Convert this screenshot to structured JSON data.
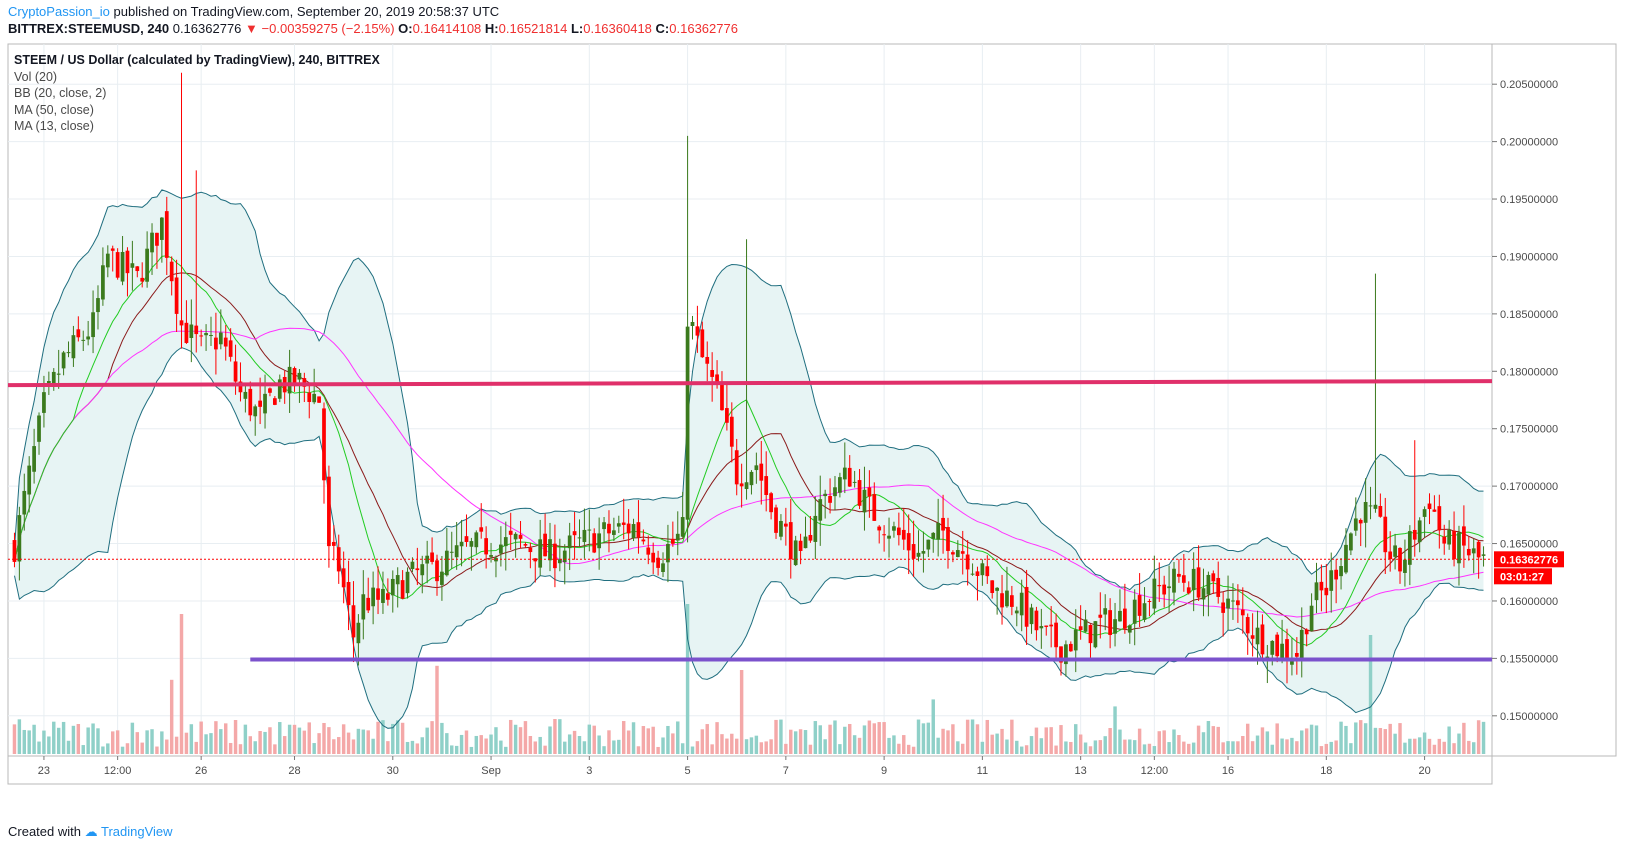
{
  "header": {
    "author": "CryptoPassion_io",
    "published": "published on TradingView.com, September 20, 2019 20:58:37 UTC",
    "symbol": "BITTREX:STEEMUSD, 240",
    "last": "0.16362776",
    "arrow": "▼",
    "change": "−0.00359275 (−2.15%)",
    "o_label": "O:",
    "o": "0.16414108",
    "h_label": "H:",
    "h": "0.16521814",
    "l_label": "L:",
    "l": "0.16360418",
    "c_label": "C:",
    "c": "0.16362776"
  },
  "legend": {
    "title": "STEEM / US Dollar (calculated by TradingView), 240, BITTREX",
    "lines": [
      "Vol (20)",
      "BB (20, close, 2)",
      "MA (50, close)",
      "MA (13, close)"
    ]
  },
  "footer": {
    "created": "Created with",
    "brand": "TradingView"
  },
  "colors": {
    "up": "#3b7a1d",
    "down": "#ff0000",
    "bb_band": "#1f6e7f",
    "bb_fill": "#e7f4f4",
    "ma50": "#ff33ff",
    "ma13": "#22cc22",
    "bb_mid": "#8b1a1a",
    "resistance": "#e0306a",
    "support": "#7b52cc",
    "vol_up": "#8fd0c8",
    "vol_down": "#f4a8a8"
  },
  "chart_data": {
    "type": "candlestick",
    "ylim": [
      0.1465,
      0.2085
    ],
    "y_ticks": [
      "0.15000000",
      "0.15500000",
      "0.16000000",
      "0.16500000",
      "0.17000000",
      "0.17500000",
      "0.18000000",
      "0.18500000",
      "0.19000000",
      "0.19500000",
      "0.20000000",
      "0.20500000"
    ],
    "x_ticks": [
      {
        "label": "23",
        "i": 6
      },
      {
        "label": "12:00",
        "i": 21
      },
      {
        "label": "26",
        "i": 38
      },
      {
        "label": "28",
        "i": 57
      },
      {
        "label": "30",
        "i": 77
      },
      {
        "label": "Sep",
        "i": 97
      },
      {
        "label": "3",
        "i": 117
      },
      {
        "label": "5",
        "i": 137
      },
      {
        "label": "7",
        "i": 157
      },
      {
        "label": "9",
        "i": 177
      },
      {
        "label": "11",
        "i": 197
      },
      {
        "label": "13",
        "i": 217
      },
      {
        "label": "12:00",
        "i": 232
      },
      {
        "label": "16",
        "i": 247
      },
      {
        "label": "18",
        "i": 267
      },
      {
        "label": "20",
        "i": 287
      }
    ],
    "last_price_label": "0.16362776",
    "countdown_label": "03:01:27",
    "resistance": 0.1788,
    "support": 0.1549,
    "anchors": [
      [
        0,
        0.1648
      ],
      [
        6,
        0.177
      ],
      [
        10,
        0.181
      ],
      [
        16,
        0.184
      ],
      [
        19,
        0.19
      ],
      [
        25,
        0.188
      ],
      [
        30,
        0.193
      ],
      [
        34,
        0.184
      ],
      [
        38,
        0.182
      ],
      [
        42,
        0.183
      ],
      [
        46,
        0.178
      ],
      [
        50,
        0.176
      ],
      [
        54,
        0.179
      ],
      [
        58,
        0.179
      ],
      [
        62,
        0.1775
      ],
      [
        64,
        0.164
      ],
      [
        66,
        0.163
      ],
      [
        69,
        0.157
      ],
      [
        71,
        0.16
      ],
      [
        75,
        0.16
      ],
      [
        80,
        0.162
      ],
      [
        86,
        0.163
      ],
      [
        92,
        0.1645
      ],
      [
        97,
        0.165
      ],
      [
        103,
        0.165
      ],
      [
        109,
        0.164
      ],
      [
        115,
        0.165
      ],
      [
        121,
        0.166
      ],
      [
        126,
        0.1665
      ],
      [
        131,
        0.164
      ],
      [
        134,
        0.165
      ],
      [
        136,
        0.166
      ],
      [
        137,
        0.185
      ],
      [
        140,
        0.181
      ],
      [
        143,
        0.178
      ],
      [
        147,
        0.171
      ],
      [
        151,
        0.172
      ],
      [
        154,
        0.168
      ],
      [
        158,
        0.165
      ],
      [
        160,
        0.163
      ],
      [
        163,
        0.168
      ],
      [
        167,
        0.17
      ],
      [
        170,
        0.171
      ],
      [
        174,
        0.168
      ],
      [
        179,
        0.166
      ],
      [
        184,
        0.164
      ],
      [
        189,
        0.166
      ],
      [
        194,
        0.164
      ],
      [
        199,
        0.161
      ],
      [
        204,
        0.16
      ],
      [
        209,
        0.157
      ],
      [
        213,
        0.156
      ],
      [
        217,
        0.157
      ],
      [
        221,
        0.158
      ],
      [
        225,
        0.1585
      ],
      [
        229,
        0.16
      ],
      [
        233,
        0.161
      ],
      [
        237,
        0.162
      ],
      [
        241,
        0.1615
      ],
      [
        245,
        0.1605
      ],
      [
        249,
        0.159
      ],
      [
        253,
        0.157
      ],
      [
        257,
        0.156
      ],
      [
        261,
        0.1555
      ],
      [
        264,
        0.16
      ],
      [
        267,
        0.161
      ],
      [
        270,
        0.164
      ],
      [
        274,
        0.168
      ],
      [
        277,
        0.167
      ],
      [
        280,
        0.164
      ],
      [
        282,
        0.163
      ],
      [
        285,
        0.166
      ],
      [
        288,
        0.169
      ],
      [
        291,
        0.165
      ],
      [
        295,
        0.1645
      ],
      [
        298,
        0.1636
      ]
    ],
    "spikes": [
      {
        "i": 34,
        "high": 0.206
      },
      {
        "i": 37,
        "high": 0.1975
      },
      {
        "i": 137,
        "high": 0.2005
      },
      {
        "i": 149,
        "high": 0.1915
      },
      {
        "i": 277,
        "high": 0.1885
      },
      {
        "i": 285,
        "high": 0.174
      }
    ],
    "volume_spikes": [
      {
        "i": 34,
        "v": 1.0
      },
      {
        "i": 86,
        "v": 0.63
      },
      {
        "i": 137,
        "v": 1.25
      },
      {
        "i": 148,
        "v": 0.6
      },
      {
        "i": 187,
        "v": 0.39
      },
      {
        "i": 275,
        "v": 0.22
      },
      {
        "i": 276,
        "v": 0.85
      },
      {
        "i": 32,
        "v": 0.53
      },
      {
        "i": 224,
        "v": 0.34
      }
    ]
  }
}
